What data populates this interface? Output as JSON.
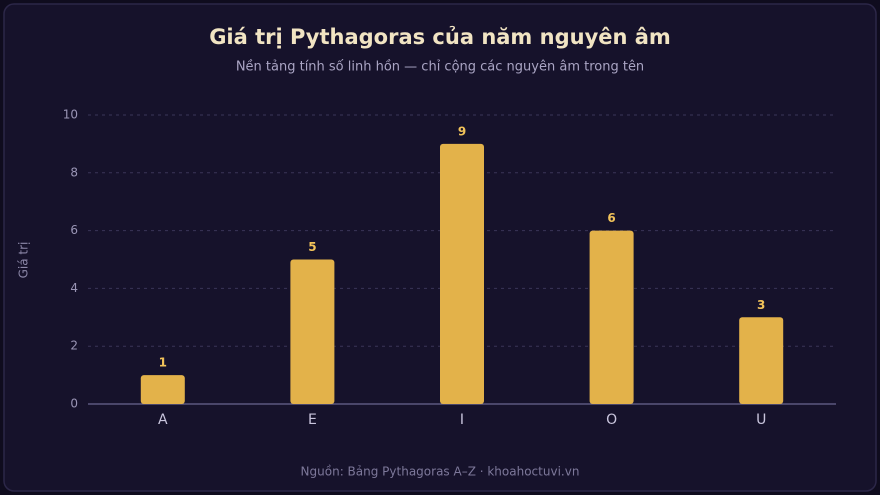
{
  "chart_data": {
    "type": "bar",
    "title": "Giá trị Pythagoras của năm nguyên âm",
    "subtitle": "Nền tảng tính số linh hồn — chỉ cộng các nguyên âm trong tên",
    "y_label": "Giá trị",
    "source": "Nguồn: Bảng Pythagoras A–Z · khoahoctuvi.vn",
    "categories": [
      "A",
      "E",
      "I",
      "O",
      "U"
    ],
    "values": [
      1,
      5,
      9,
      6,
      3
    ],
    "color": "#e3b24a",
    "ylim": [
      0,
      10
    ],
    "yticks": [
      0,
      2,
      4,
      6,
      8,
      10
    ],
    "grid": true
  }
}
